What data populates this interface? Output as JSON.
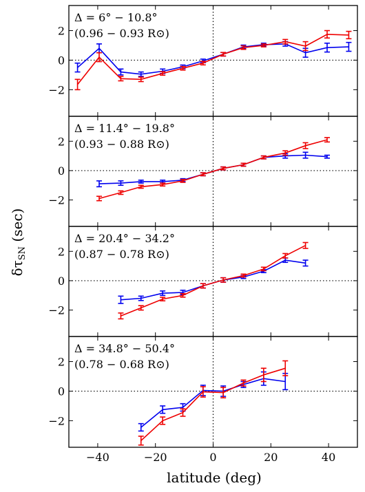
{
  "figure": {
    "xlabel": "latitude (deg)",
    "ylabel_main": "δτ",
    "ylabel_sub": "SN",
    "ylabel_unit": " (sec)"
  },
  "colors": {
    "blue": "#0000ee",
    "red": "#ee0000",
    "axis": "#000000"
  },
  "chart_data": [
    {
      "type": "line",
      "annotation_line1": "Δ = 6° − 10.8°",
      "annotation_line2": "(0.96 − 0.93 R⊙)",
      "xlim": [
        -50,
        50
      ],
      "ylim": [
        -3.8,
        3.7
      ],
      "xticks": [
        -40,
        -20,
        0,
        20,
        40
      ],
      "yticks": [
        -2,
        0,
        2
      ],
      "ref_lines": {
        "x": 0,
        "y": 0
      },
      "series": [
        {
          "color": "blue",
          "x": [
            -47,
            -39.5,
            -32,
            -25,
            -17.5,
            -10.5,
            -3.5,
            3.5,
            10.5,
            17.5,
            25,
            32,
            39.5,
            47
          ],
          "y": [
            -0.5,
            0.8,
            -0.8,
            -0.95,
            -0.75,
            -0.45,
            -0.05,
            0.4,
            0.9,
            1.05,
            1.1,
            0.5,
            0.85,
            0.9
          ],
          "err": [
            0.3,
            0.3,
            0.2,
            0.15,
            0.15,
            0.12,
            0.12,
            0.12,
            0.12,
            0.1,
            0.15,
            0.3,
            0.3,
            0.3
          ]
        },
        {
          "color": "red",
          "x": [
            -47,
            -39.5,
            -32,
            -25,
            -17.5,
            -10.5,
            -3.5,
            3.5,
            10.5,
            17.5,
            25,
            32,
            39.5,
            47
          ],
          "y": [
            -1.65,
            0.2,
            -1.25,
            -1.3,
            -0.9,
            -0.55,
            -0.2,
            0.4,
            0.85,
            1.0,
            1.25,
            0.95,
            1.75,
            1.7
          ],
          "err": [
            0.35,
            0.3,
            0.15,
            0.15,
            0.12,
            0.12,
            0.12,
            0.12,
            0.12,
            0.1,
            0.15,
            0.3,
            0.25,
            0.25
          ]
        }
      ]
    },
    {
      "type": "line",
      "annotation_line1": "Δ = 11.4° − 19.8°",
      "annotation_line2": "(0.93 − 0.88 R⊙)",
      "xlim": [
        -50,
        50
      ],
      "ylim": [
        -3.8,
        3.7
      ],
      "xticks": [
        -40,
        -20,
        0,
        20,
        40
      ],
      "yticks": [
        -2,
        0,
        2
      ],
      "ref_lines": {
        "x": 0,
        "y": 0
      },
      "series": [
        {
          "color": "blue",
          "x": [
            -39.5,
            -32,
            -25,
            -17.5,
            -10.5,
            -3.5,
            3.5,
            10.5,
            17.5,
            25,
            32,
            39.5
          ],
          "y": [
            -0.9,
            -0.85,
            -0.75,
            -0.75,
            -0.65,
            -0.25,
            0.15,
            0.4,
            0.9,
            1.0,
            1.05,
            0.95
          ],
          "err": [
            0.2,
            0.15,
            0.1,
            0.1,
            0.1,
            0.1,
            0.1,
            0.1,
            0.1,
            0.15,
            0.2,
            0.1
          ]
        },
        {
          "color": "red",
          "x": [
            -39.5,
            -32,
            -25,
            -17.5,
            -10.5,
            -3.5,
            3.5,
            10.5,
            17.5,
            25,
            32,
            39.5
          ],
          "y": [
            -1.9,
            -1.5,
            -1.1,
            -0.95,
            -0.7,
            -0.25,
            0.15,
            0.4,
            0.9,
            1.2,
            1.7,
            2.1
          ],
          "err": [
            0.15,
            0.12,
            0.1,
            0.1,
            0.1,
            0.1,
            0.1,
            0.1,
            0.1,
            0.15,
            0.2,
            0.15
          ]
        }
      ]
    },
    {
      "type": "line",
      "annotation_line1": "Δ = 20.4° − 34.2°",
      "annotation_line2": "(0.87 − 0.78 R⊙)",
      "xlim": [
        -50,
        50
      ],
      "ylim": [
        -3.8,
        3.7
      ],
      "xticks": [
        -40,
        -20,
        0,
        20,
        40
      ],
      "yticks": [
        -2,
        0,
        2
      ],
      "ref_lines": {
        "x": 0,
        "y": 0
      },
      "series": [
        {
          "color": "blue",
          "x": [
            -32,
            -25,
            -17.5,
            -10.5,
            -3.5,
            3.5,
            10.5,
            17.5,
            25,
            32
          ],
          "y": [
            -1.3,
            -1.2,
            -0.85,
            -0.8,
            -0.35,
            0.05,
            0.25,
            0.65,
            1.4,
            1.2
          ],
          "err": [
            0.25,
            0.15,
            0.15,
            0.15,
            0.15,
            0.15,
            0.1,
            0.1,
            0.15,
            0.2
          ]
        },
        {
          "color": "red",
          "x": [
            -32,
            -25,
            -17.5,
            -10.5,
            -3.5,
            3.5,
            10.5,
            17.5,
            25,
            32
          ],
          "y": [
            -2.4,
            -1.85,
            -1.25,
            -1.0,
            -0.35,
            0.05,
            0.35,
            0.8,
            1.7,
            2.4
          ],
          "err": [
            0.2,
            0.15,
            0.12,
            0.12,
            0.15,
            0.15,
            0.1,
            0.12,
            0.15,
            0.2
          ]
        }
      ]
    },
    {
      "type": "line",
      "annotation_line1": "Δ = 34.8° − 50.4°",
      "annotation_line2": "(0.78 − 0.68 R⊙)",
      "xlim": [
        -50,
        50
      ],
      "ylim": [
        -3.8,
        3.7
      ],
      "xticks": [
        -40,
        -20,
        0,
        20,
        40
      ],
      "yticks": [
        -2,
        0,
        2
      ],
      "ref_lines": {
        "x": 0,
        "y": 0
      },
      "series": [
        {
          "color": "blue",
          "x": [
            -25,
            -17.5,
            -10.5,
            -3.5,
            3.5,
            10.5,
            17.5,
            25
          ],
          "y": [
            -2.45,
            -1.25,
            -1.1,
            0.05,
            0.0,
            0.45,
            0.85,
            0.65
          ],
          "err": [
            0.25,
            0.25,
            0.25,
            0.35,
            0.35,
            0.2,
            0.45,
            0.55
          ]
        },
        {
          "color": "red",
          "x": [
            -25,
            -17.5,
            -10.5,
            -3.5,
            3.5,
            10.5,
            17.5,
            25
          ],
          "y": [
            -3.35,
            -2.0,
            -1.45,
            -0.05,
            -0.1,
            0.55,
            1.1,
            1.55
          ],
          "err": [
            0.3,
            0.25,
            0.25,
            0.35,
            0.35,
            0.2,
            0.45,
            0.5
          ]
        }
      ]
    }
  ]
}
